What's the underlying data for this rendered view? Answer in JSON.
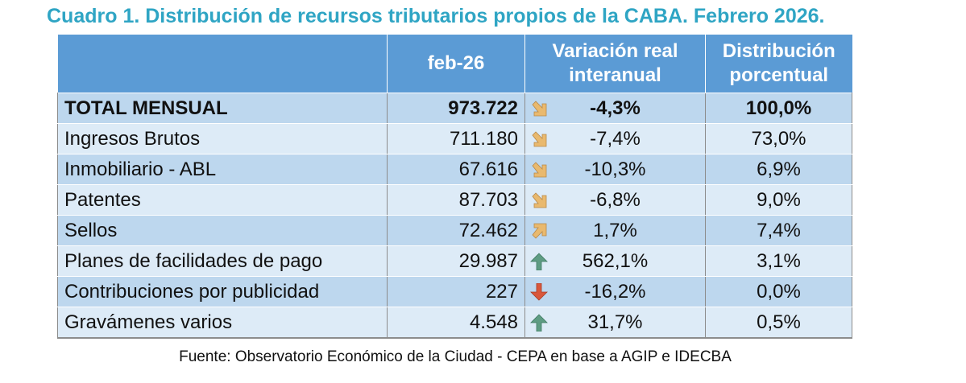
{
  "title": "Cuadro 1. Distribución de recursos tributarios propios de la CABA. Febrero 2026.",
  "headers": {
    "concept": "",
    "value": "feb-26",
    "variation": "Variación real interanual",
    "distribution": "Distribución porcentual"
  },
  "rows": [
    {
      "label": "TOTAL MENSUAL",
      "value": "973.722",
      "icon": "arrow-down-right",
      "variation": "-4,3%",
      "distribution": "100,0%"
    },
    {
      "label": "Ingresos Brutos",
      "value": "711.180",
      "icon": "arrow-down-right",
      "variation": "-7,4%",
      "distribution": "73,0%"
    },
    {
      "label": "Inmobiliario - ABL",
      "value": "67.616",
      "icon": "arrow-down-right",
      "variation": "-10,3%",
      "distribution": "6,9%"
    },
    {
      "label": "Patentes",
      "value": "87.703",
      "icon": "arrow-down-right",
      "variation": "-6,8%",
      "distribution": "9,0%"
    },
    {
      "label": "Sellos",
      "value": "72.462",
      "icon": "arrow-up-right",
      "variation": "1,7%",
      "distribution": "7,4%"
    },
    {
      "label": "Planes de facilidades de pago",
      "value": "29.987",
      "icon": "arrow-up",
      "variation": "562,1%",
      "distribution": "3,1%"
    },
    {
      "label": "Contribuciones por publicidad",
      "value": "227",
      "icon": "arrow-down",
      "variation": "-16,2%",
      "distribution": "0,0%"
    },
    {
      "label": "Gravámenes varios",
      "value": "4.548",
      "icon": "arrow-up",
      "variation": "31,7%",
      "distribution": "0,5%"
    }
  ],
  "colors": {
    "title": "#2fa5c4",
    "header": "#5b9bd5",
    "row_dark": "#bdd7ee",
    "row_light": "#ddebf7",
    "arrow_yellow": "#e9b96e",
    "arrow_green": "#5e9c83",
    "arrow_red": "#d9573b"
  },
  "source": "Fuente: Observatorio Económico de la Ciudad - CEPA en base a AGIP e IDECBA"
}
